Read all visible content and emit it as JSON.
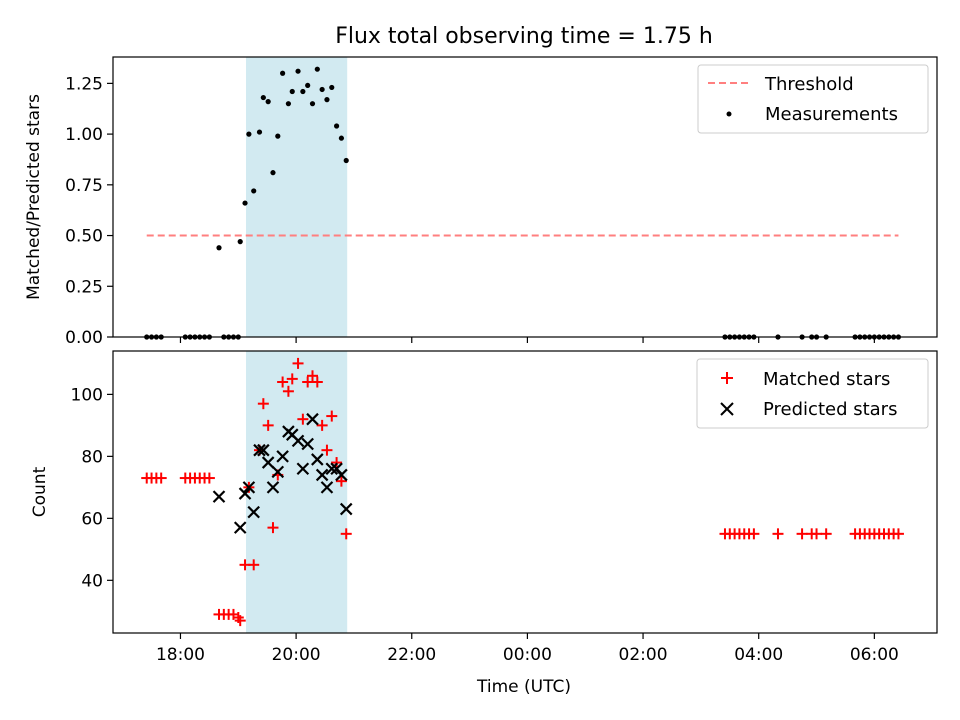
{
  "figure": {
    "title": "Flux total observing time = 1.75 h"
  },
  "chart_data": [
    {
      "type": "scatter",
      "panel": "top",
      "title": "Flux total observing time = 1.75 h",
      "xlabel": "",
      "ylabel": "Matched/Predicted stars",
      "xlim": [
        "2023-01-01T16:50",
        "2023-01-02T07:05"
      ],
      "ylim": [
        0,
        1.38
      ],
      "yticks": [
        0.0,
        0.25,
        0.5,
        0.75,
        1.0,
        1.25
      ],
      "ytick_labels": [
        "0.00",
        "0.25",
        "0.50",
        "0.75",
        "1.00",
        "1.25"
      ],
      "grid": false,
      "legend_position": "top-right",
      "highlight_span": {
        "x0": "2023-01-01T19:08",
        "x1": "2023-01-01T20:53",
        "color": "#add8e6"
      },
      "threshold": {
        "name": "Threshold",
        "y": 0.5,
        "x0": "2023-01-01T17:25",
        "x1": "2023-01-02T06:25",
        "color": "#ff7f7f",
        "style": "dashed"
      },
      "series": [
        {
          "name": "Measurements",
          "color": "#000000",
          "marker": "dot",
          "points": [
            [
              "2023-01-01T17:25",
              0
            ],
            [
              "2023-01-01T17:30",
              0
            ],
            [
              "2023-01-01T17:35",
              0
            ],
            [
              "2023-01-01T17:40",
              0
            ],
            [
              "2023-01-01T18:05",
              0
            ],
            [
              "2023-01-01T18:10",
              0
            ],
            [
              "2023-01-01T18:15",
              0
            ],
            [
              "2023-01-01T18:20",
              0
            ],
            [
              "2023-01-01T18:25",
              0
            ],
            [
              "2023-01-01T18:30",
              0
            ],
            [
              "2023-01-01T18:40",
              0.44
            ],
            [
              "2023-01-01T18:45",
              0
            ],
            [
              "2023-01-01T18:50",
              0
            ],
            [
              "2023-01-01T18:55",
              0
            ],
            [
              "2023-01-01T19:00",
              0
            ],
            [
              "2023-01-01T19:02",
              0.47
            ],
            [
              "2023-01-01T19:07",
              0.66
            ],
            [
              "2023-01-01T19:11",
              1.0
            ],
            [
              "2023-01-01T19:16",
              0.72
            ],
            [
              "2023-01-01T19:22",
              1.01
            ],
            [
              "2023-01-01T19:26",
              1.18
            ],
            [
              "2023-01-01T19:31",
              1.16
            ],
            [
              "2023-01-01T19:36",
              0.81
            ],
            [
              "2023-01-01T19:41",
              0.99
            ],
            [
              "2023-01-01T19:46",
              1.3
            ],
            [
              "2023-01-01T19:52",
              1.15
            ],
            [
              "2023-01-01T19:56",
              1.21
            ],
            [
              "2023-01-01T20:02",
              1.31
            ],
            [
              "2023-01-01T20:07",
              1.21
            ],
            [
              "2023-01-01T20:12",
              1.24
            ],
            [
              "2023-01-01T20:17",
              1.15
            ],
            [
              "2023-01-01T20:22",
              1.32
            ],
            [
              "2023-01-01T20:27",
              1.22
            ],
            [
              "2023-01-01T20:32",
              1.17
            ],
            [
              "2023-01-01T20:37",
              1.23
            ],
            [
              "2023-01-01T20:42",
              1.04
            ],
            [
              "2023-01-01T20:47",
              0.98
            ],
            [
              "2023-01-01T20:52",
              0.87
            ],
            [
              "2023-01-02T03:25",
              0
            ],
            [
              "2023-01-02T03:30",
              0
            ],
            [
              "2023-01-02T03:35",
              0
            ],
            [
              "2023-01-02T03:40",
              0
            ],
            [
              "2023-01-02T03:45",
              0
            ],
            [
              "2023-01-02T03:50",
              0
            ],
            [
              "2023-01-02T03:55",
              0
            ],
            [
              "2023-01-02T04:20",
              0
            ],
            [
              "2023-01-02T04:45",
              0
            ],
            [
              "2023-01-02T04:55",
              0
            ],
            [
              "2023-01-02T05:00",
              0
            ],
            [
              "2023-01-02T05:10",
              0
            ],
            [
              "2023-01-02T05:40",
              0
            ],
            [
              "2023-01-02T05:45",
              0
            ],
            [
              "2023-01-02T05:50",
              0
            ],
            [
              "2023-01-02T05:55",
              0
            ],
            [
              "2023-01-02T06:00",
              0
            ],
            [
              "2023-01-02T06:05",
              0
            ],
            [
              "2023-01-02T06:10",
              0
            ],
            [
              "2023-01-02T06:15",
              0
            ],
            [
              "2023-01-02T06:20",
              0
            ],
            [
              "2023-01-02T06:25",
              0
            ]
          ]
        }
      ]
    },
    {
      "type": "scatter",
      "panel": "bottom",
      "title": "",
      "xlabel": "Time (UTC)",
      "ylabel": "Count",
      "xlim": [
        "2023-01-01T16:50",
        "2023-01-02T07:05"
      ],
      "ylim": [
        23,
        114
      ],
      "yticks": [
        40,
        60,
        80,
        100
      ],
      "ytick_labels": [
        "40",
        "60",
        "80",
        "100"
      ],
      "xticks": [
        "2023-01-01T18:00",
        "2023-01-01T20:00",
        "2023-01-01T22:00",
        "2023-01-02T00:00",
        "2023-01-02T02:00",
        "2023-01-02T04:00",
        "2023-01-02T06:00"
      ],
      "xtick_labels": [
        "18:00",
        "20:00",
        "22:00",
        "00:00",
        "02:00",
        "04:00",
        "06:00"
      ],
      "grid": false,
      "legend_position": "top-right",
      "highlight_span": {
        "x0": "2023-01-01T19:08",
        "x1": "2023-01-01T20:53",
        "color": "#add8e6"
      },
      "series": [
        {
          "name": "Matched stars",
          "color": "#ff0000",
          "marker": "plus",
          "points": [
            [
              "2023-01-01T17:25",
              73
            ],
            [
              "2023-01-01T17:30",
              73
            ],
            [
              "2023-01-01T17:35",
              73
            ],
            [
              "2023-01-01T17:40",
              73
            ],
            [
              "2023-01-01T18:05",
              73
            ],
            [
              "2023-01-01T18:10",
              73
            ],
            [
              "2023-01-01T18:15",
              73
            ],
            [
              "2023-01-01T18:20",
              73
            ],
            [
              "2023-01-01T18:25",
              73
            ],
            [
              "2023-01-01T18:30",
              73
            ],
            [
              "2023-01-01T18:40",
              29
            ],
            [
              "2023-01-01T18:45",
              29
            ],
            [
              "2023-01-01T18:50",
              29
            ],
            [
              "2023-01-01T18:55",
              29
            ],
            [
              "2023-01-01T19:00",
              28
            ],
            [
              "2023-01-01T19:02",
              27
            ],
            [
              "2023-01-01T19:07",
              45
            ],
            [
              "2023-01-01T19:11",
              70
            ],
            [
              "2023-01-01T19:16",
              45
            ],
            [
              "2023-01-01T19:22",
              82
            ],
            [
              "2023-01-01T19:26",
              97
            ],
            [
              "2023-01-01T19:31",
              90
            ],
            [
              "2023-01-01T19:36",
              57
            ],
            [
              "2023-01-01T19:41",
              74
            ],
            [
              "2023-01-01T19:46",
              104
            ],
            [
              "2023-01-01T19:52",
              101
            ],
            [
              "2023-01-01T19:56",
              105
            ],
            [
              "2023-01-01T20:02",
              110
            ],
            [
              "2023-01-01T20:07",
              92
            ],
            [
              "2023-01-01T20:12",
              104
            ],
            [
              "2023-01-01T20:17",
              106
            ],
            [
              "2023-01-01T20:22",
              104
            ],
            [
              "2023-01-01T20:27",
              90
            ],
            [
              "2023-01-01T20:32",
              82
            ],
            [
              "2023-01-01T20:37",
              93
            ],
            [
              "2023-01-01T20:42",
              78
            ],
            [
              "2023-01-01T20:47",
              72
            ],
            [
              "2023-01-01T20:52",
              55
            ],
            [
              "2023-01-02T03:25",
              55
            ],
            [
              "2023-01-02T03:30",
              55
            ],
            [
              "2023-01-02T03:35",
              55
            ],
            [
              "2023-01-02T03:40",
              55
            ],
            [
              "2023-01-02T03:45",
              55
            ],
            [
              "2023-01-02T03:50",
              55
            ],
            [
              "2023-01-02T03:55",
              55
            ],
            [
              "2023-01-02T04:20",
              55
            ],
            [
              "2023-01-02T04:45",
              55
            ],
            [
              "2023-01-02T04:55",
              55
            ],
            [
              "2023-01-02T05:00",
              55
            ],
            [
              "2023-01-02T05:10",
              55
            ],
            [
              "2023-01-02T05:40",
              55
            ],
            [
              "2023-01-02T05:45",
              55
            ],
            [
              "2023-01-02T05:50",
              55
            ],
            [
              "2023-01-02T05:55",
              55
            ],
            [
              "2023-01-02T06:00",
              55
            ],
            [
              "2023-01-02T06:05",
              55
            ],
            [
              "2023-01-02T06:10",
              55
            ],
            [
              "2023-01-02T06:15",
              55
            ],
            [
              "2023-01-02T06:20",
              55
            ],
            [
              "2023-01-02T06:25",
              55
            ]
          ]
        },
        {
          "name": "Predicted stars",
          "color": "#000000",
          "marker": "x",
          "points": [
            [
              "2023-01-01T18:40",
              67
            ],
            [
              "2023-01-01T19:02",
              57
            ],
            [
              "2023-01-01T19:07",
              68
            ],
            [
              "2023-01-01T19:11",
              70
            ],
            [
              "2023-01-01T19:16",
              62
            ],
            [
              "2023-01-01T19:22",
              82
            ],
            [
              "2023-01-01T19:26",
              82
            ],
            [
              "2023-01-01T19:31",
              78
            ],
            [
              "2023-01-01T19:36",
              70
            ],
            [
              "2023-01-01T19:41",
              75
            ],
            [
              "2023-01-01T19:46",
              80
            ],
            [
              "2023-01-01T19:52",
              88
            ],
            [
              "2023-01-01T19:56",
              87
            ],
            [
              "2023-01-01T20:02",
              85
            ],
            [
              "2023-01-01T20:07",
              76
            ],
            [
              "2023-01-01T20:12",
              84
            ],
            [
              "2023-01-01T20:17",
              92
            ],
            [
              "2023-01-01T20:22",
              79
            ],
            [
              "2023-01-01T20:27",
              74
            ],
            [
              "2023-01-01T20:32",
              70
            ],
            [
              "2023-01-01T20:37",
              76
            ],
            [
              "2023-01-01T20:42",
              76
            ],
            [
              "2023-01-01T20:47",
              74
            ],
            [
              "2023-01-01T20:52",
              63
            ]
          ]
        }
      ]
    }
  ]
}
